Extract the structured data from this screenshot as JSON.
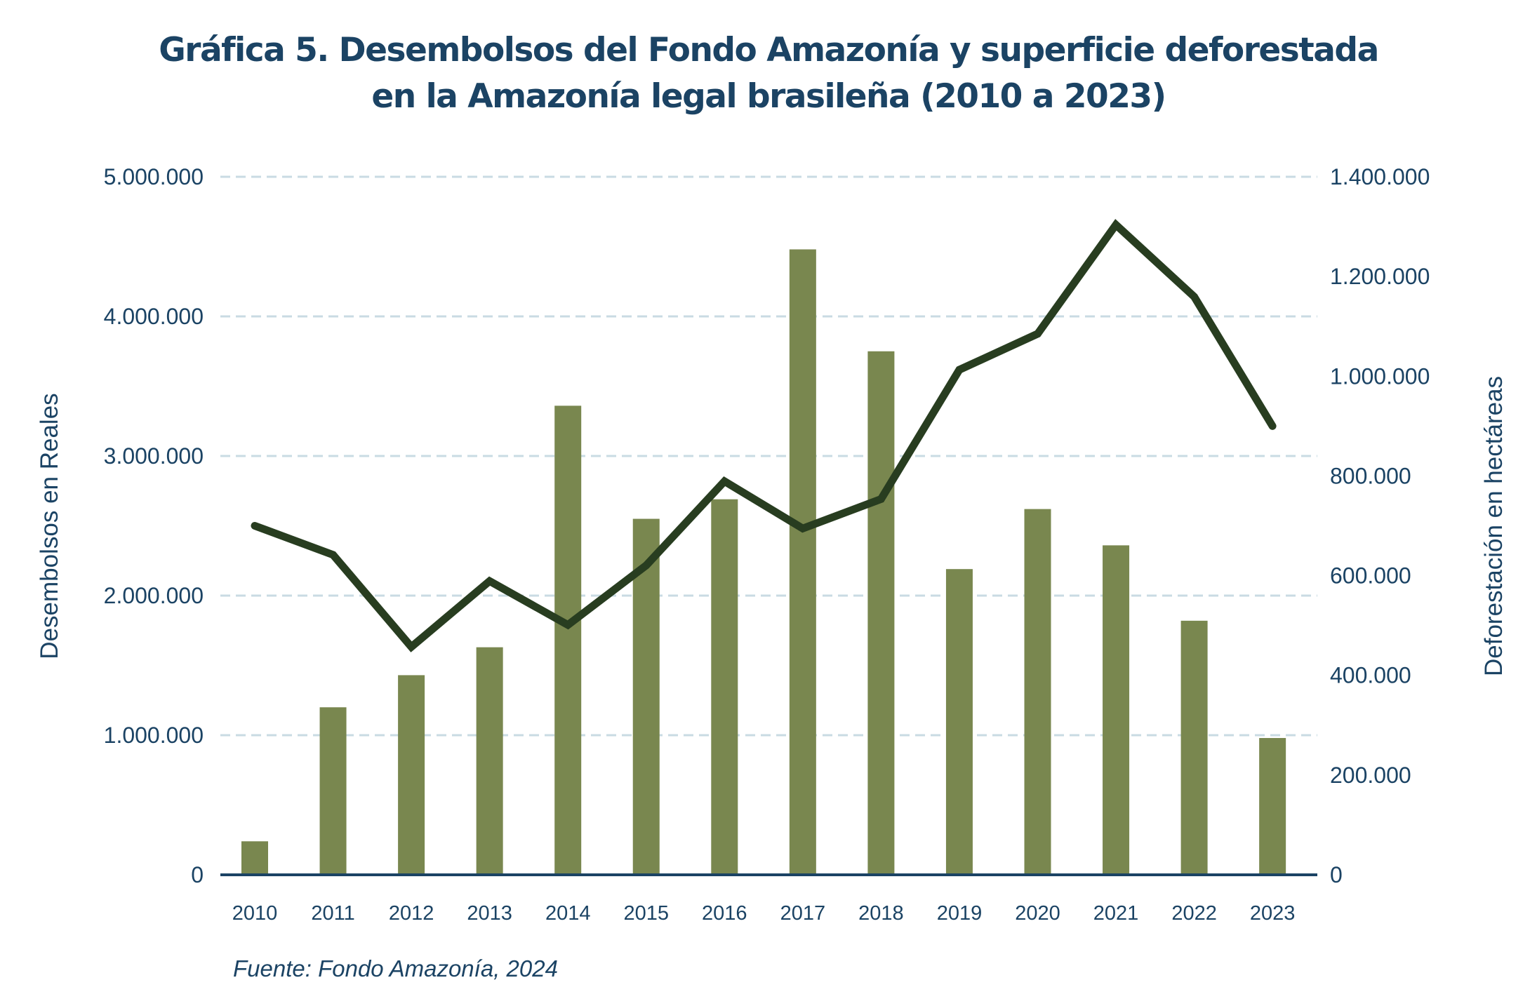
{
  "chart_data": {
    "type": "bar+line",
    "title_lines": [
      "Gráfica 5. Desembolsos del Fondo Amazonía y superficie deforestada",
      "en la Amazonía legal brasileña (2010 a 2023)"
    ],
    "categories": [
      "2010",
      "2011",
      "2012",
      "2013",
      "2014",
      "2015",
      "2016",
      "2017",
      "2018",
      "2019",
      "2020",
      "2021",
      "2022",
      "2023"
    ],
    "series": [
      {
        "name": "Desembolsos en Reales",
        "type": "bar",
        "axis": "left",
        "color": "#79874f",
        "values": [
          240000,
          1200000,
          1430000,
          1630000,
          3360000,
          2550000,
          2690000,
          4480000,
          3750000,
          2190000,
          2620000,
          2360000,
          1820000,
          980000
        ]
      },
      {
        "name": "Deforestación en hectáreas",
        "type": "line",
        "axis": "right",
        "color": "#283d20",
        "values": [
          700000,
          641800,
          457100,
          589100,
          501200,
          620700,
          789300,
          694700,
          753600,
          1012900,
          1085100,
          1303800,
          1159400,
          900100
        ]
      }
    ],
    "left_axis": {
      "label": "Desembolsos en Reales",
      "range": [
        0,
        5000000
      ],
      "ticks": [
        0,
        1000000,
        2000000,
        3000000,
        4000000,
        5000000
      ],
      "tick_labels": [
        "0",
        "1.000.000",
        "2.000.000",
        "3.000.000",
        "4.000.000",
        "5.000.000"
      ]
    },
    "right_axis": {
      "label": "Deforestación en hectáreas",
      "range": [
        0,
        1400000
      ],
      "ticks": [
        0,
        200000,
        400000,
        600000,
        800000,
        1000000,
        1200000,
        1400000
      ],
      "tick_labels": [
        "0",
        "200.000",
        "400.000",
        "600.000",
        "800.000",
        "1.000.000",
        "1.200.000",
        "1.400.000"
      ]
    },
    "grid": "horizontal dashed (left axis ticks)",
    "legend": "none",
    "source": "Fuente: Fondo Amazonía, 2024",
    "colors": {
      "text": "#1b4364",
      "grid": "#c9dbe3",
      "axis": "#1b4364",
      "bar": "#79874f",
      "line": "#283d20",
      "right_zero_label": "#555555"
    }
  }
}
